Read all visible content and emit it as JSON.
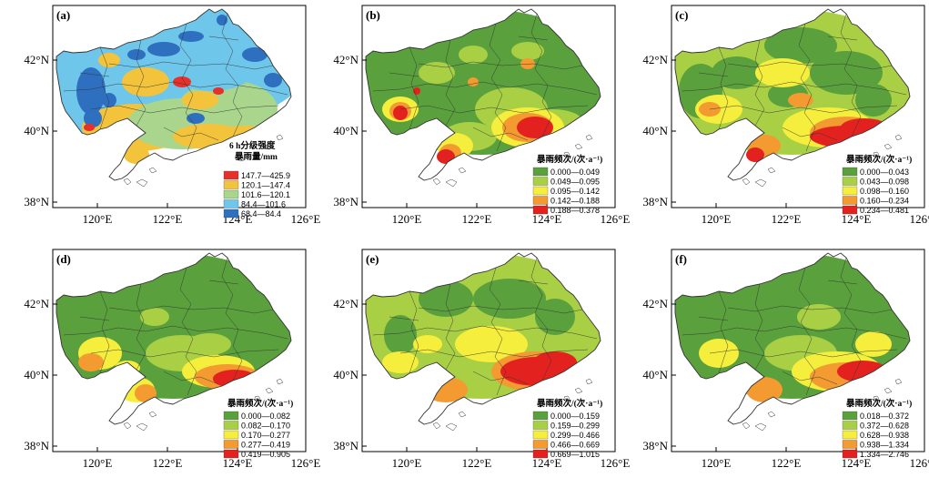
{
  "axes": {
    "lat_labels": [
      "42°N",
      "40°N",
      "38°N"
    ],
    "lon_labels": [
      "120°E",
      "122°E",
      "124°E",
      "126°E"
    ]
  },
  "colors": {
    "band1": "#2f6fbf",
    "band2": "#6ec6ea",
    "band3": "#a9d68c",
    "band4": "#f3c33b",
    "band5": "#e8302a",
    "freq1": "#5aa03c",
    "freq2": "#a9cf45",
    "freq3": "#f6ee3c",
    "freq4": "#f39a31",
    "freq5": "#e3221f",
    "boundary": "#333333"
  },
  "panels": [
    {
      "label": "(a)",
      "legend_title_1": "6 h分级强度",
      "legend_title_2": "暴雨量/mm",
      "legend": [
        {
          "range": "147.7—425.9",
          "color": "#e8302a"
        },
        {
          "range": "120.1—147.4",
          "color": "#f3c33b"
        },
        {
          "range": "101.6—120.1",
          "color": "#a9d68c"
        },
        {
          "range": "84.4—101.6",
          "color": "#6ec6ea"
        },
        {
          "range": "68.4—84.4",
          "color": "#2f6fbf"
        }
      ]
    },
    {
      "label": "(b)",
      "legend_title_1": "暴雨频次/(次·a⁻¹)",
      "legend_title_2": "",
      "legend": [
        {
          "range": "0.000—0.049",
          "color": "#5aa03c"
        },
        {
          "range": "0.049—0.095",
          "color": "#a9cf45"
        },
        {
          "range": "0.095—0.142",
          "color": "#f6ee3c"
        },
        {
          "range": "0.142—0.188",
          "color": "#f39a31"
        },
        {
          "range": "0.188—0.378",
          "color": "#e3221f"
        }
      ]
    },
    {
      "label": "(c)",
      "legend_title_1": "暴雨频次/(次·a⁻¹)",
      "legend_title_2": "",
      "legend": [
        {
          "range": "0.000—0.043",
          "color": "#5aa03c"
        },
        {
          "range": "0.043—0.098",
          "color": "#a9cf45"
        },
        {
          "range": "0.098—0.160",
          "color": "#f6ee3c"
        },
        {
          "range": "0.160—0.234",
          "color": "#f39a31"
        },
        {
          "range": "0.234—0.481",
          "color": "#e3221f"
        }
      ]
    },
    {
      "label": "(d)",
      "legend_title_1": "暴雨频次/(次·a⁻¹)",
      "legend_title_2": "",
      "legend": [
        {
          "range": "0.000—0.082",
          "color": "#5aa03c"
        },
        {
          "range": "0.082—0.170",
          "color": "#a9cf45"
        },
        {
          "range": "0.170—0.277",
          "color": "#f6ee3c"
        },
        {
          "range": "0.277—0.419",
          "color": "#f39a31"
        },
        {
          "range": "0.419—0.905",
          "color": "#e3221f"
        }
      ]
    },
    {
      "label": "(e)",
      "legend_title_1": "暴雨频次/(次·a⁻¹)",
      "legend_title_2": "",
      "legend": [
        {
          "range": "0.000—0.159",
          "color": "#5aa03c"
        },
        {
          "range": "0.159—0.299",
          "color": "#a9cf45"
        },
        {
          "range": "0.299—0.466",
          "color": "#f6ee3c"
        },
        {
          "range": "0.466—0.669",
          "color": "#f39a31"
        },
        {
          "range": "0.669—1.015",
          "color": "#e3221f"
        }
      ]
    },
    {
      "label": "(f)",
      "legend_title_1": "暴雨频次/(次·a⁻¹)",
      "legend_title_2": "",
      "legend": [
        {
          "range": "0.018—0.372",
          "color": "#5aa03c"
        },
        {
          "range": "0.372—0.628",
          "color": "#a9cf45"
        },
        {
          "range": "0.628—0.938",
          "color": "#f6ee3c"
        },
        {
          "range": "0.938—1.334",
          "color": "#f39a31"
        },
        {
          "range": "1.334—2.746",
          "color": "#e3221f"
        }
      ]
    }
  ]
}
